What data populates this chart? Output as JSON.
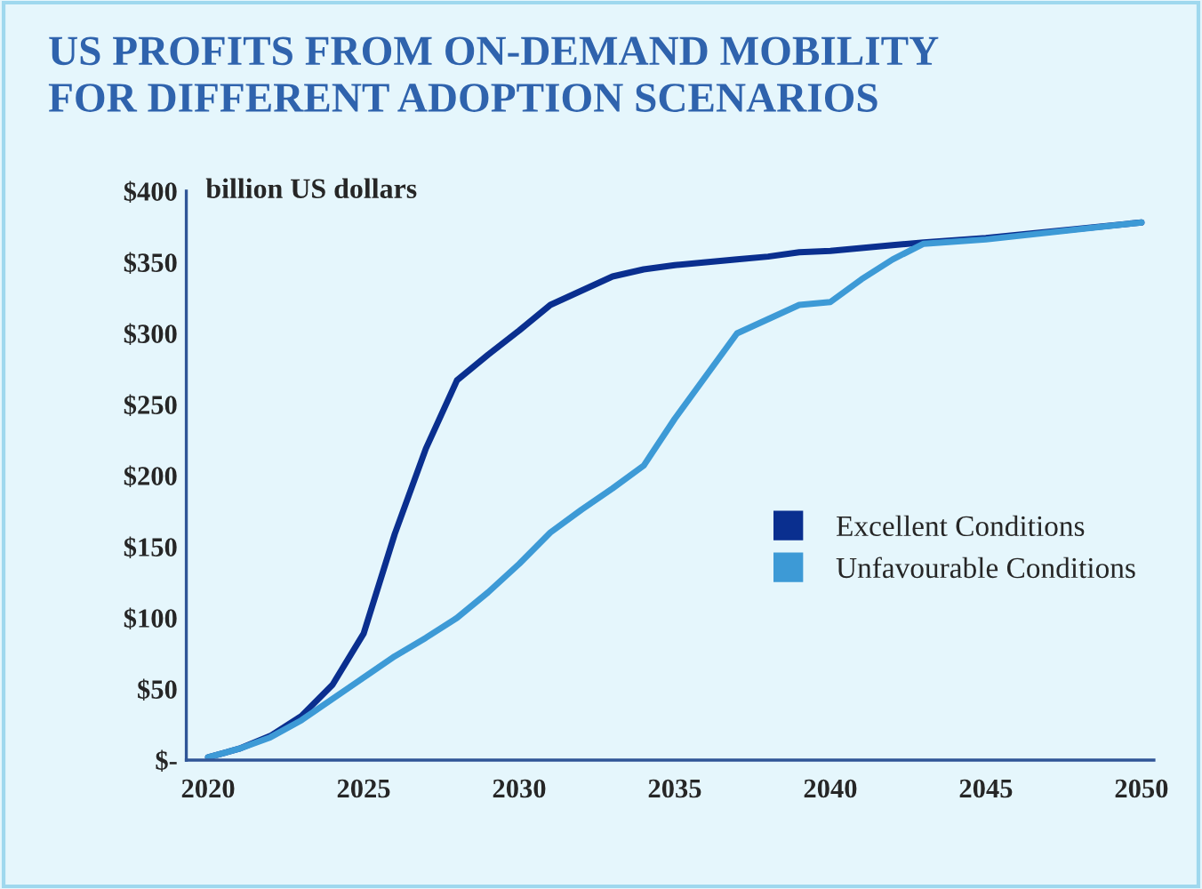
{
  "chart_data": {
    "type": "line",
    "title": "US PROFITS FROM ON-DEMAND MOBILITY\nFOR DIFFERENT ADOPTION SCENARIOS",
    "ylabel": "billion US dollars",
    "x": [
      2020,
      2021,
      2022,
      2023,
      2024,
      2025,
      2026,
      2027,
      2028,
      2029,
      2030,
      2031,
      2032,
      2033,
      2034,
      2035,
      2036,
      2037,
      2038,
      2039,
      2040,
      2041,
      2042,
      2043,
      2045,
      2050
    ],
    "series": [
      {
        "name": "Excellent Conditions",
        "color": "#0a2f8f",
        "values": [
          2,
          8,
          17,
          31,
          53,
          89,
          159,
          219,
          267,
          285,
          302,
          320,
          330,
          340,
          345,
          348,
          350,
          352,
          354,
          357,
          358,
          360,
          362,
          364,
          367,
          378
        ]
      },
      {
        "name": "Unfavourable Conditions",
        "color": "#3d9ad6",
        "values": [
          2,
          8,
          16,
          28,
          43,
          58,
          73,
          86,
          100,
          118,
          138,
          160,
          176,
          191,
          207,
          240,
          270,
          300,
          310,
          320,
          322,
          338,
          352,
          363,
          366,
          378
        ]
      }
    ],
    "xlim": [
      2019.3,
      2050.4
    ],
    "xticks": [
      2020,
      2025,
      2030,
      2035,
      2040,
      2045,
      2050
    ],
    "ylim": [
      0,
      400
    ],
    "yticks": [
      {
        "value": 0,
        "label": "$-"
      },
      {
        "value": 50,
        "label": "$50"
      },
      {
        "value": 100,
        "label": "$100"
      },
      {
        "value": 150,
        "label": "$150"
      },
      {
        "value": 200,
        "label": "$200"
      },
      {
        "value": 250,
        "label": "$250"
      },
      {
        "value": 300,
        "label": "$300"
      },
      {
        "value": 350,
        "label": "$350"
      },
      {
        "value": 400,
        "label": "$400"
      }
    ],
    "grid": false,
    "legend": "right",
    "marker": "none",
    "line_style": "solid"
  }
}
